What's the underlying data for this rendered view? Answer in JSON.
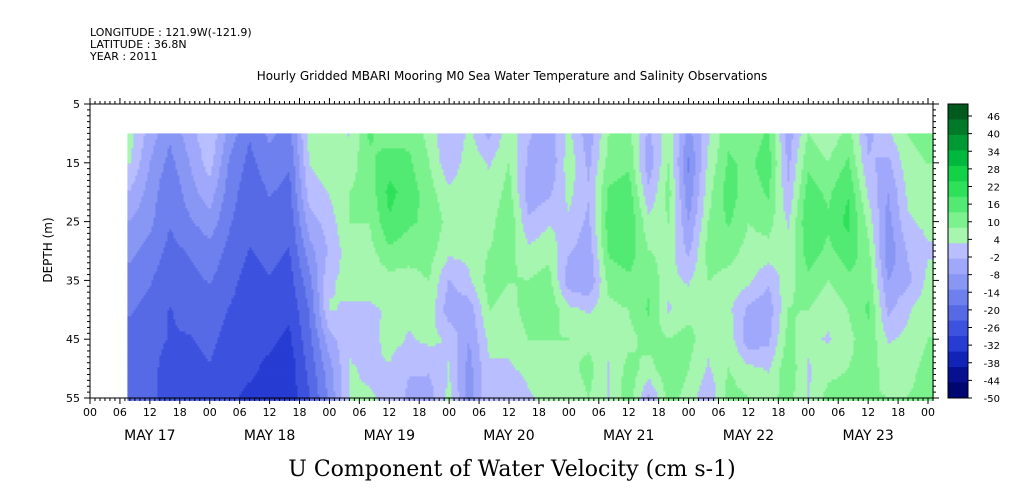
{
  "header": {
    "longitude": "LONGITUDE : 121.9W(-121.9)",
    "latitude": "LATITUDE : 36.8N",
    "year": "YEAR : 2011"
  },
  "chart_data": {
    "type": "heatmap",
    "title": "Hourly Gridded MBARI Mooring M0 Sea Water Temperature and Salinity Observations",
    "xlabel": "U Component of Water Velocity (cm s-1)",
    "ylabel": "DEPTH (m)",
    "x_hour_range": [
      0,
      169
    ],
    "x_hour_tick_labels": [
      "00",
      "06",
      "12",
      "18",
      "00",
      "06",
      "12",
      "18",
      "00",
      "06",
      "12",
      "18",
      "00",
      "06",
      "12",
      "18",
      "00",
      "06",
      "12",
      "18",
      "00",
      "06",
      "12",
      "18",
      "00",
      "06",
      "12",
      "18",
      "00"
    ],
    "x_day_labels": [
      "MAY 17",
      "MAY 18",
      "MAY 19",
      "MAY 20",
      "MAY 21",
      "MAY 22",
      "MAY 23"
    ],
    "y_range": [
      5,
      55
    ],
    "y_ticks": [
      5,
      15,
      25,
      35,
      45,
      55
    ],
    "data_depth_range": [
      10,
      55
    ],
    "data_hour_start": 7.5,
    "colorbar": {
      "tick_labels": [
        "46",
        "40",
        "34",
        "28",
        "22",
        "16",
        "10",
        "4",
        "-2",
        "-8",
        "-14",
        "-20",
        "-26",
        "-32",
        "-38",
        "-44",
        "-50"
      ],
      "colors": [
        "#005a1e",
        "#007a28",
        "#009934",
        "#00b83e",
        "#14d248",
        "#2ee05a",
        "#52ea72",
        "#7cf28e",
        "#a6f6b0",
        "#b8beff",
        "#9fa8fa",
        "#8896f4",
        "#6e80ee",
        "#566ae6",
        "#3d52de",
        "#263cd2",
        "#1224b8",
        "#061090",
        "#000670"
      ],
      "range": [
        -50,
        50
      ]
    },
    "columns": [
      {
        "hour": 8,
        "u": [
          5,
          3,
          -3,
          -8,
          -12,
          -15,
          -18,
          -20,
          -20,
          -20
        ]
      },
      {
        "hour": 12,
        "u": [
          -5,
          -8,
          -10,
          -12,
          -15,
          -18,
          -20,
          -22,
          -22,
          -22
        ]
      },
      {
        "hour": 16,
        "u": [
          -12,
          -15,
          -18,
          -18,
          -20,
          -22,
          -24,
          -24,
          -26,
          -26
        ]
      },
      {
        "hour": 20,
        "u": [
          -5,
          -8,
          -10,
          -14,
          -18,
          -20,
          -22,
          -24,
          -26,
          -28
        ]
      },
      {
        "hour": 24,
        "u": [
          2,
          0,
          -5,
          -10,
          -15,
          -18,
          -20,
          -22,
          -24,
          -28
        ]
      },
      {
        "hour": 28,
        "u": [
          -10,
          -14,
          -16,
          -18,
          -20,
          -22,
          -24,
          -26,
          -28,
          -28
        ]
      },
      {
        "hour": 32,
        "u": [
          -18,
          -20,
          -22,
          -22,
          -24,
          -26,
          -26,
          -28,
          -28,
          -30
        ]
      },
      {
        "hour": 36,
        "u": [
          -12,
          -15,
          -18,
          -20,
          -22,
          -24,
          -26,
          -28,
          -30,
          -32
        ]
      },
      {
        "hour": 40,
        "u": [
          -15,
          -18,
          -20,
          -22,
          -24,
          -26,
          -28,
          -30,
          -32,
          -32
        ]
      },
      {
        "hour": 44,
        "u": [
          5,
          3,
          0,
          -5,
          -10,
          -15,
          -18,
          -20,
          -22,
          -24
        ]
      },
      {
        "hour": 48,
        "u": [
          8,
          6,
          3,
          0,
          -2,
          2,
          3,
          -5,
          -10,
          -12
        ]
      },
      {
        "hour": 52,
        "u": [
          2,
          5,
          8,
          8,
          6,
          4,
          2,
          2,
          3,
          3
        ]
      },
      {
        "hour": 56,
        "u": [
          14,
          12,
          10,
          8,
          6,
          4,
          2,
          0,
          2,
          3
        ]
      },
      {
        "hour": 60,
        "u": [
          10,
          16,
          20,
          18,
          12,
          6,
          3,
          5,
          2,
          2
        ]
      },
      {
        "hour": 64,
        "u": [
          12,
          14,
          16,
          14,
          10,
          6,
          4,
          2,
          -2,
          -4
        ]
      },
      {
        "hour": 68,
        "u": [
          6,
          8,
          10,
          12,
          10,
          8,
          6,
          4,
          -2,
          -5
        ]
      },
      {
        "hour": 72,
        "u": [
          -3,
          -2,
          4,
          6,
          4,
          -3,
          -6,
          2,
          3,
          4
        ]
      },
      {
        "hour": 76,
        "u": [
          4,
          6,
          8,
          6,
          4,
          2,
          -6,
          -8,
          -10,
          -10
        ]
      },
      {
        "hour": 80,
        "u": [
          -4,
          2,
          4,
          6,
          8,
          10,
          8,
          4,
          2,
          2
        ]
      },
      {
        "hour": 84,
        "u": [
          6,
          8,
          10,
          12,
          10,
          8,
          6,
          4,
          2,
          -2
        ]
      },
      {
        "hour": 88,
        "u": [
          -2,
          -4,
          -6,
          -2,
          4,
          8,
          10,
          8,
          4,
          2
        ]
      },
      {
        "hour": 92,
        "u": [
          -6,
          -8,
          -4,
          2,
          6,
          10,
          12,
          8,
          6,
          4
        ]
      },
      {
        "hour": 96,
        "u": [
          4,
          6,
          4,
          2,
          -2,
          -6,
          4,
          8,
          6,
          4
        ]
      },
      {
        "hour": 100,
        "u": [
          -6,
          -4,
          -2,
          -4,
          -6,
          -8,
          2,
          6,
          10,
          8
        ]
      },
      {
        "hour": 104,
        "u": [
          8,
          10,
          14,
          16,
          14,
          10,
          6,
          4,
          2,
          2
        ]
      },
      {
        "hour": 108,
        "u": [
          10,
          12,
          16,
          18,
          16,
          12,
          8,
          6,
          10,
          12
        ]
      },
      {
        "hour": 112,
        "u": [
          -4,
          -6,
          -2,
          4,
          8,
          12,
          14,
          10,
          6,
          -4
        ]
      },
      {
        "hour": 116,
        "u": [
          6,
          8,
          10,
          8,
          6,
          4,
          2,
          8,
          12,
          10
        ]
      },
      {
        "hour": 120,
        "u": [
          -10,
          -14,
          -12,
          -8,
          -4,
          2,
          6,
          10,
          8,
          6
        ]
      },
      {
        "hour": 124,
        "u": [
          2,
          4,
          6,
          8,
          10,
          8,
          6,
          4,
          2,
          -2
        ]
      },
      {
        "hour": 128,
        "u": [
          12,
          14,
          16,
          14,
          10,
          6,
          4,
          6,
          8,
          10
        ]
      },
      {
        "hour": 132,
        "u": [
          10,
          12,
          10,
          8,
          6,
          4,
          -4,
          -6,
          4,
          8
        ]
      },
      {
        "hour": 136,
        "u": [
          14,
          16,
          14,
          10,
          6,
          -2,
          -6,
          -4,
          2,
          6
        ]
      },
      {
        "hour": 140,
        "u": [
          -6,
          -4,
          -2,
          2,
          4,
          6,
          8,
          10,
          12,
          10
        ]
      },
      {
        "hour": 144,
        "u": [
          8,
          12,
          16,
          18,
          16,
          12,
          8,
          4,
          2,
          2
        ]
      },
      {
        "hour": 148,
        "u": [
          4,
          8,
          12,
          14,
          12,
          8,
          4,
          2,
          6,
          10
        ]
      },
      {
        "hour": 152,
        "u": [
          10,
          14,
          18,
          20,
          16,
          12,
          8,
          6,
          8,
          10
        ]
      },
      {
        "hour": 156,
        "u": [
          -4,
          -2,
          2,
          6,
          10,
          12,
          14,
          12,
          10,
          8
        ]
      },
      {
        "hour": 160,
        "u": [
          2,
          -4,
          -8,
          -10,
          -12,
          -8,
          -4,
          2,
          6,
          8
        ]
      },
      {
        "hour": 164,
        "u": [
          8,
          6,
          4,
          2,
          -2,
          -4,
          2,
          4,
          6,
          8
        ]
      },
      {
        "hour": 168,
        "u": [
          10,
          8,
          6,
          4,
          2,
          4,
          6,
          8,
          10,
          10
        ]
      }
    ]
  }
}
